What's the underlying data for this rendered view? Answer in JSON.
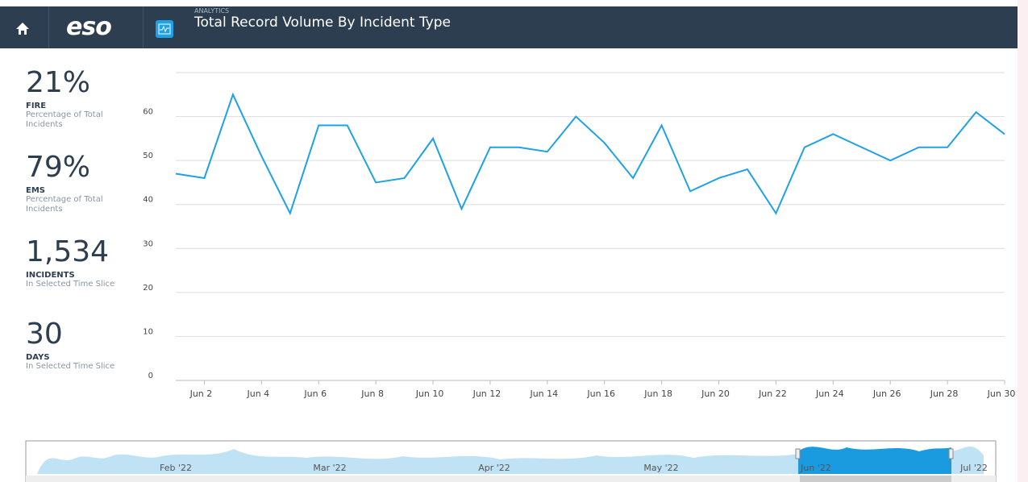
{
  "header": {
    "logo": "eso",
    "section": "ANALYTICS",
    "title": "Total Record Volume By Incident Type"
  },
  "stats": [
    {
      "value": "21%",
      "label": "FIRE",
      "description": "Percentage of Total Incidents"
    },
    {
      "value": "79%",
      "label": "EMS",
      "description": "Percentage of Total Incidents"
    },
    {
      "value": "1,534",
      "label": "INCIDENTS",
      "description": "In Selected Time Slice"
    },
    {
      "value": "30",
      "label": "DAYS",
      "description": "In Selected Time Slice"
    }
  ],
  "chart_data": {
    "type": "line",
    "categories": [
      null,
      "Jun 2",
      null,
      "Jun 4",
      null,
      "Jun 6",
      null,
      "Jun 8",
      null,
      "Jun 10",
      null,
      "Jun 12",
      null,
      "Jun 14",
      null,
      "Jun 16",
      null,
      "Jun 18",
      null,
      "Jun 20",
      null,
      "Jun 22",
      null,
      "Jun 24",
      null,
      "Jun 26",
      null,
      "Jun 28",
      null,
      "Jun 30"
    ],
    "values": [
      47,
      46,
      65,
      51,
      38,
      58,
      58,
      45,
      46,
      55,
      39,
      53,
      53,
      52,
      60,
      54,
      46,
      58,
      43,
      46,
      48,
      38,
      53,
      56,
      53,
      50,
      53,
      53,
      61,
      56
    ],
    "color": "#1ea1e6",
    "ylim": [
      0,
      70
    ],
    "yticks": [
      0,
      10,
      20,
      30,
      40,
      50,
      60
    ],
    "grid": true
  },
  "navigator": {
    "labels": [
      "Feb '22",
      "Mar '22",
      "Apr '22",
      "May '22",
      "Jun '22",
      "Jul '22"
    ]
  }
}
